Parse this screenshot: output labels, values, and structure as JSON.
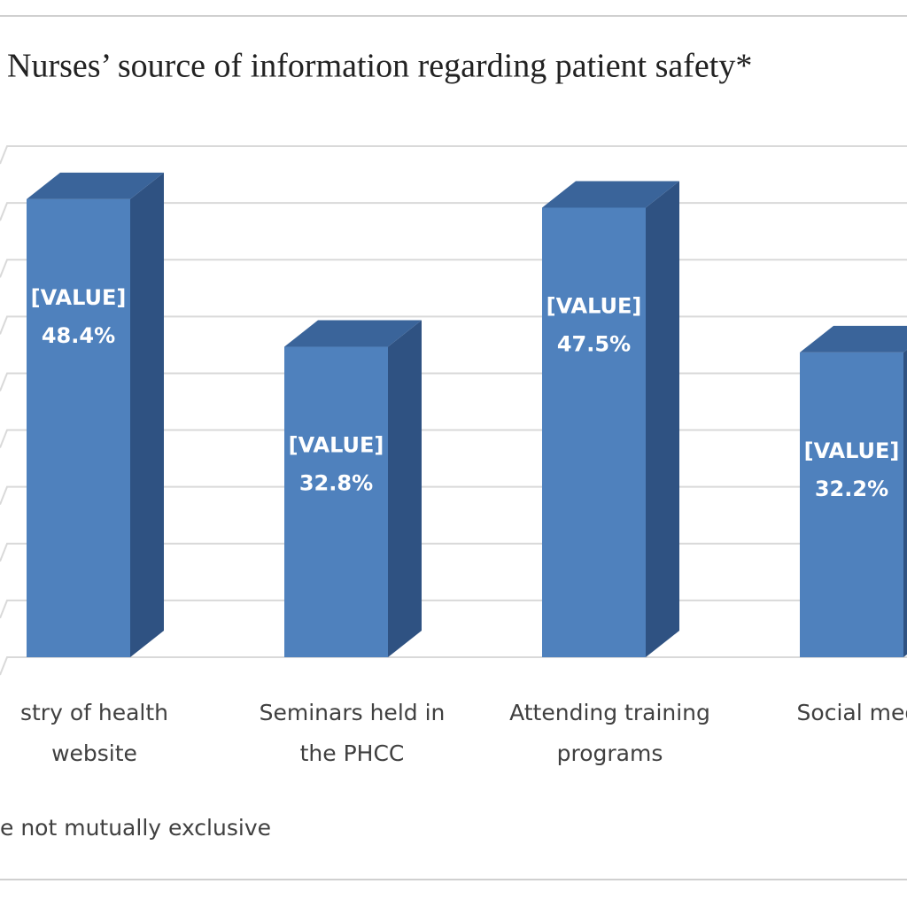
{
  "chart_data": {
    "type": "bar3d",
    "title": "Nurses’ source of information regarding patient safety*",
    "categories": [
      [
        "stry of health",
        "website"
      ],
      [
        "Seminars held in",
        "the PHCC"
      ],
      [
        "Attending training",
        "programs"
      ],
      [
        "Social media"
      ]
    ],
    "values": [
      48.4,
      32.8,
      47.5,
      32.2
    ],
    "value_labels": [
      "48.4%",
      "32.8%",
      "47.5%",
      "32.2%"
    ],
    "value_placeholder": "[VALUE]",
    "color": "#4f81bd",
    "ylim": [
      0,
      54
    ],
    "yticks": [
      0,
      6,
      12,
      18,
      24,
      30,
      36,
      42,
      48,
      54
    ],
    "grid": true,
    "footnote": "e not mutually exclusive"
  }
}
